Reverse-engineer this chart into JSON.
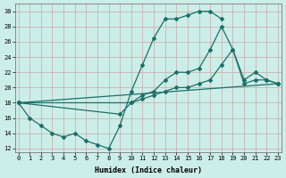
{
  "xlabel": "Humidex (Indice chaleur)",
  "bg_color": "#cceee8",
  "line_color": "#1a7068",
  "grid_color": "#c9a8a8",
  "xlim": [
    -0.3,
    23.3
  ],
  "ylim": [
    11.5,
    31.0
  ],
  "yticks": [
    12,
    14,
    16,
    18,
    20,
    22,
    24,
    26,
    28,
    30
  ],
  "xticks": [
    0,
    1,
    2,
    3,
    4,
    5,
    6,
    7,
    8,
    9,
    10,
    11,
    12,
    13,
    14,
    15,
    16,
    17,
    18,
    19,
    20,
    21,
    22,
    23
  ],
  "line1_x": [
    0,
    1,
    2,
    3,
    4,
    5,
    6,
    7,
    8,
    9,
    10,
    11,
    12,
    13,
    14,
    15,
    16,
    17,
    18
  ],
  "line1_y": [
    18,
    16,
    15,
    14,
    13.5,
    14,
    13,
    12.5,
    12,
    15,
    19.5,
    23,
    26.5,
    29,
    29,
    29.5,
    30,
    30,
    29
  ],
  "line2_x": [
    0,
    10,
    11,
    12,
    13,
    14,
    15,
    16,
    17,
    18,
    19,
    20,
    21,
    22,
    23
  ],
  "line2_y": [
    18,
    18,
    19,
    19.5,
    21,
    22,
    22,
    22.5,
    25,
    28,
    25,
    21,
    22,
    21,
    20.5
  ],
  "line3_x": [
    0,
    9,
    10,
    11,
    12,
    13,
    14,
    15,
    16,
    17,
    18,
    19,
    20,
    21,
    22,
    23
  ],
  "line3_y": [
    18,
    16.5,
    18,
    18.5,
    19,
    19.5,
    20,
    20,
    20.5,
    21,
    23,
    25,
    20.5,
    21,
    21,
    20.5
  ],
  "line4_x": [
    0,
    23
  ],
  "line4_y": [
    18,
    20.5
  ]
}
